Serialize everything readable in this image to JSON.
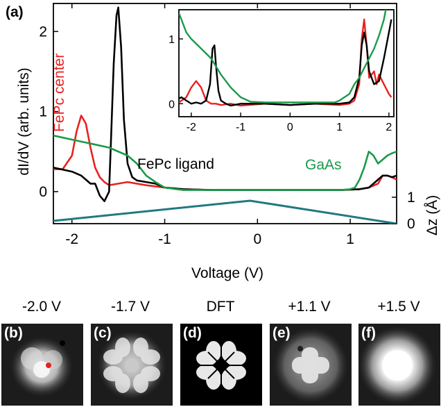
{
  "figure": {
    "panel_a_label": "(a)",
    "panel_headers": [
      "-2.0 V",
      "-1.7 V",
      "DFT",
      "+1.1 V",
      "+1.5 V"
    ],
    "panel_letters": [
      "(b)",
      "(c)",
      "(d)",
      "(e)",
      "(f)"
    ]
  },
  "chart_data": [
    {
      "type": "line",
      "xlabel": "Voltage (V)",
      "ylabel": "dI/dV (arb. units)",
      "ylabel_right": "Δz (Å)",
      "xlim": [
        -2.2,
        1.5
      ],
      "ylim": [
        -0.4,
        2.35
      ],
      "xticks": [
        -2,
        -1,
        0,
        1
      ],
      "yticks": [
        0,
        1,
        2
      ],
      "right_yticks": [
        "0",
        "1"
      ],
      "annotations": [
        "FePc center",
        "FePc ligand",
        "GaAs"
      ],
      "series": [
        {
          "name": "FePc center",
          "color": "#e8221f",
          "x": [
            -2.2,
            -2.1,
            -2.0,
            -1.95,
            -1.9,
            -1.85,
            -1.8,
            -1.75,
            -1.7,
            -1.65,
            -1.6,
            -1.5,
            -1.4,
            -1.2,
            -1.0,
            -0.8,
            -0.5,
            0.0,
            0.5,
            0.9,
            1.1,
            1.2,
            1.3,
            1.35,
            1.4,
            1.45,
            1.5
          ],
          "y": [
            0.28,
            0.28,
            0.45,
            0.75,
            0.95,
            0.85,
            0.55,
            0.3,
            0.18,
            0.12,
            0.08,
            0.1,
            0.12,
            0.08,
            0.05,
            0.03,
            0.02,
            0.02,
            0.02,
            0.02,
            0.03,
            0.05,
            0.1,
            0.2,
            0.2,
            0.18,
            0.15
          ]
        },
        {
          "name": "FePc ligand",
          "color": "#000000",
          "x": [
            -2.2,
            -2.0,
            -1.9,
            -1.8,
            -1.75,
            -1.7,
            -1.65,
            -1.6,
            -1.58,
            -1.55,
            -1.52,
            -1.5,
            -1.47,
            -1.44,
            -1.4,
            -1.35,
            -1.3,
            -1.2,
            -1.1,
            -1.0,
            -0.8,
            -0.5,
            0.0,
            0.5,
            0.9,
            1.1,
            1.2,
            1.3,
            1.35,
            1.4,
            1.45,
            1.5
          ],
          "y": [
            0.3,
            0.25,
            0.2,
            0.1,
            0.1,
            -0.05,
            -0.12,
            0.0,
            0.6,
            1.6,
            2.2,
            2.3,
            1.8,
            0.9,
            0.35,
            0.18,
            0.14,
            0.12,
            0.1,
            0.05,
            0.03,
            0.02,
            0.02,
            0.02,
            0.02,
            0.03,
            0.05,
            0.15,
            0.2,
            0.2,
            0.18,
            0.2
          ]
        },
        {
          "name": "GaAs",
          "color": "#1a9a4a",
          "x": [
            -2.2,
            -2.0,
            -1.8,
            -1.6,
            -1.4,
            -1.3,
            -1.2,
            -1.1,
            -1.0,
            -0.8,
            -0.5,
            0.0,
            0.5,
            0.9,
            1.0,
            1.05,
            1.1,
            1.15,
            1.2,
            1.25,
            1.3,
            1.35,
            1.4,
            1.45,
            1.5
          ],
          "y": [
            0.7,
            0.65,
            0.6,
            0.55,
            0.45,
            0.35,
            0.2,
            0.12,
            0.05,
            0.02,
            0.02,
            0.02,
            0.02,
            0.02,
            0.03,
            0.05,
            0.15,
            0.3,
            0.5,
            0.45,
            0.35,
            0.4,
            0.45,
            0.48,
            0.5
          ]
        },
        {
          "name": "Δz",
          "color": "#1f7a80",
          "x": [
            -2.2,
            -0.08,
            1.5
          ],
          "y": [
            0.12,
            1.0,
            0.0
          ]
        }
      ]
    },
    {
      "type": "line",
      "xlim": [
        -2.25,
        2.1
      ],
      "ylim": [
        -0.2,
        1.45
      ],
      "xticks": [
        -2,
        -1,
        0,
        1,
        2
      ],
      "yticks": [
        0,
        1
      ],
      "series": [
        {
          "name": "FePc center",
          "color": "#e8221f",
          "x": [
            -2.25,
            -2.1,
            -2.0,
            -1.9,
            -1.8,
            -1.7,
            -1.6,
            -1.5,
            -1.4,
            -1.2,
            -1.0,
            -0.5,
            0.0,
            0.5,
            1.0,
            1.2,
            1.3,
            1.4,
            1.45,
            1.5,
            1.55,
            1.6,
            1.7,
            1.75,
            1.8,
            1.9,
            2.0,
            2.05
          ],
          "y": [
            0.02,
            0.1,
            0.25,
            0.35,
            0.25,
            0.05,
            0.0,
            0.0,
            -0.02,
            0.0,
            -0.03,
            0.0,
            -0.02,
            0.0,
            -0.02,
            0.0,
            0.05,
            0.3,
            1.0,
            1.3,
            0.9,
            0.4,
            0.5,
            0.3,
            0.45,
            0.3,
            0.15,
            0.1
          ]
        },
        {
          "name": "FePc ligand",
          "color": "#000000",
          "x": [
            -2.25,
            -2.2,
            -2.1,
            -2.0,
            -1.9,
            -1.8,
            -1.7,
            -1.62,
            -1.57,
            -1.53,
            -1.5,
            -1.45,
            -1.4,
            -1.3,
            -1.2,
            -1.0,
            -0.5,
            0.0,
            0.5,
            1.0,
            1.2,
            1.3,
            1.4,
            1.45,
            1.5,
            1.55,
            1.6,
            1.7,
            1.8,
            1.9,
            2.0,
            2.05
          ],
          "y": [
            0.08,
            0.1,
            0.05,
            0.0,
            0.02,
            0.0,
            0.05,
            0.3,
            0.85,
            0.9,
            0.6,
            0.2,
            0.05,
            0.0,
            -0.03,
            0.0,
            0.0,
            -0.02,
            0.0,
            0.0,
            0.02,
            0.1,
            0.4,
            0.9,
            1.1,
            0.9,
            0.5,
            0.3,
            0.35,
            0.7,
            1.1,
            1.3
          ]
        },
        {
          "name": "GaAs",
          "color": "#1a9a4a",
          "x": [
            -2.25,
            -2.1,
            -2.0,
            -1.8,
            -1.6,
            -1.4,
            -1.2,
            -1.0,
            -0.8,
            -0.5,
            0.0,
            0.5,
            0.9,
            1.0,
            1.1,
            1.2,
            1.3,
            1.4,
            1.5,
            1.6,
            1.7,
            1.8,
            1.9,
            1.95
          ],
          "y": [
            1.4,
            1.1,
            1.0,
            0.85,
            0.7,
            0.45,
            0.25,
            0.1,
            0.03,
            0.02,
            0.02,
            0.02,
            0.02,
            0.05,
            0.1,
            0.15,
            0.3,
            0.4,
            0.55,
            0.7,
            0.85,
            1.05,
            1.3,
            1.5
          ]
        }
      ]
    }
  ]
}
